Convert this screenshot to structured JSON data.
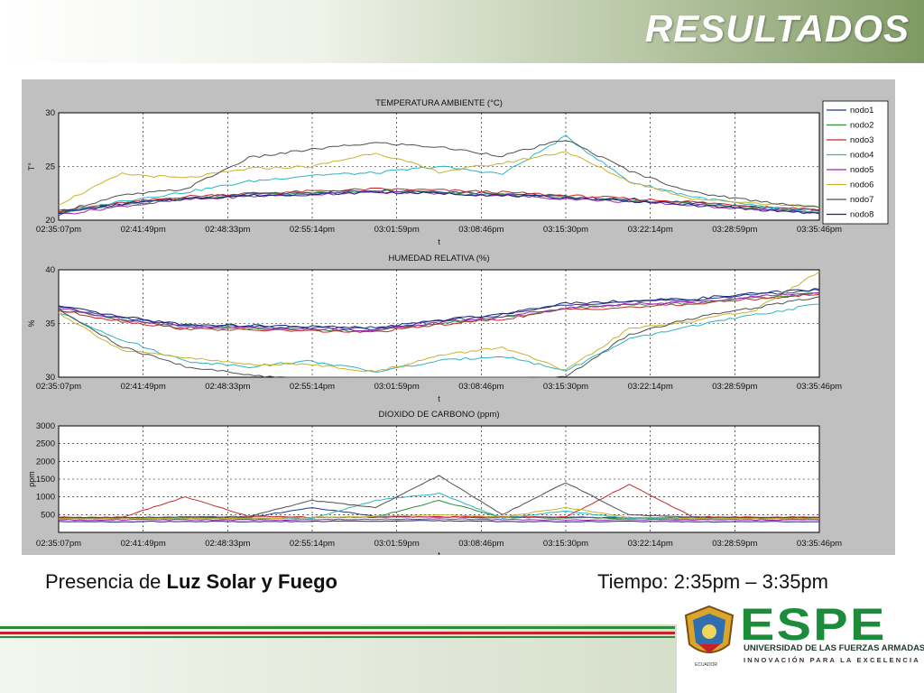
{
  "slide": {
    "title": "RESULTADOS",
    "caption_prefix": "Presencia de ",
    "caption_bold": "Luz Solar y Fuego",
    "caption_time": "Tiempo: 2:35pm – 3:35pm"
  },
  "logo": {
    "name": "ESPE",
    "university": "UNIVERSIDAD DE LAS FUERZAS ARMADAS",
    "motto": "INNOVACIÓN PARA LA EXCELENCIA",
    "crest_label": "ECUADOR"
  },
  "colors": {
    "nodo1": "#1f3a8a",
    "nodo2": "#2e8b3a",
    "nodo3": "#c62828",
    "nodo4": "#2bb5c2",
    "nodo5": "#9c27b0",
    "nodo6": "#c9b32e",
    "nodo7": "#505050",
    "nodo8": "#1a237e"
  },
  "chart_data": [
    {
      "type": "line",
      "title": "TEMPERATURA AMBIENTE (°C)",
      "xlabel": "t",
      "ylabel": "T°",
      "ylim": [
        20,
        30
      ],
      "yticks": [
        "20",
        "25",
        "30"
      ],
      "xticks": [
        "02:35:07pm",
        "02:41:49pm",
        "02:48:33pm",
        "02:55:14pm",
        "03:01:59pm",
        "03:08:46pm",
        "03:15:30pm",
        "03:22:14pm",
        "03:28:59pm",
        "03:35:46pm"
      ],
      "legend": [
        "nodo1",
        "nodo2",
        "nodo3",
        "nodo4",
        "nodo5",
        "nodo6",
        "nodo7",
        "nodo8"
      ],
      "grid": true,
      "series": [
        {
          "name": "nodo1",
          "values": [
            20.8,
            21.5,
            22.1,
            22.4,
            22.6,
            22.8,
            22.7,
            22.5,
            22.2,
            21.9,
            21.6,
            21.2,
            20.9
          ]
        },
        {
          "name": "nodo2",
          "values": [
            20.7,
            21.4,
            22.0,
            22.3,
            22.5,
            22.7,
            22.6,
            22.4,
            22.1,
            21.8,
            21.5,
            21.1,
            20.8
          ]
        },
        {
          "name": "nodo3",
          "values": [
            20.9,
            21.6,
            22.2,
            22.5,
            22.7,
            22.9,
            22.8,
            22.6,
            22.3,
            22.0,
            21.7,
            21.3,
            21.0
          ]
        },
        {
          "name": "nodo4",
          "values": [
            20.6,
            21.8,
            22.6,
            23.6,
            24.2,
            24.4,
            25.0,
            24.3,
            27.8,
            23.6,
            22.2,
            21.3,
            20.7
          ]
        },
        {
          "name": "nodo5",
          "values": [
            20.5,
            21.3,
            21.9,
            22.2,
            22.4,
            22.6,
            22.5,
            22.3,
            22.0,
            21.7,
            21.4,
            21.0,
            20.7
          ]
        },
        {
          "name": "nodo6",
          "values": [
            21.5,
            24.3,
            23.9,
            24.8,
            25.0,
            26.3,
            24.5,
            25.3,
            26.4,
            23.6,
            22.0,
            21.6,
            21.2
          ]
        },
        {
          "name": "nodo7",
          "values": [
            20.8,
            22.3,
            22.9,
            25.8,
            26.6,
            27.2,
            26.8,
            26.0,
            27.5,
            24.6,
            22.6,
            21.8,
            21.2
          ]
        },
        {
          "name": "nodo8",
          "values": [
            20.7,
            21.5,
            22.0,
            22.3,
            22.4,
            22.6,
            22.5,
            22.3,
            22.1,
            21.8,
            21.4,
            21.0,
            20.6
          ]
        }
      ]
    },
    {
      "type": "line",
      "title": "HUMEDAD RELATIVA (%)",
      "xlabel": "t",
      "ylabel": "%",
      "ylim": [
        30,
        40
      ],
      "yticks": [
        "30",
        "35",
        "40"
      ],
      "xticks": [
        "02:35:07pm",
        "02:41:49pm",
        "02:48:33pm",
        "02:55:14pm",
        "03:01:59pm",
        "03:08:46pm",
        "03:15:30pm",
        "03:22:14pm",
        "03:28:59pm",
        "03:35:46pm"
      ],
      "grid": true,
      "series": [
        {
          "name": "nodo1",
          "values": [
            36.5,
            35.5,
            34.8,
            34.7,
            34.6,
            34.5,
            35.2,
            35.8,
            36.8,
            37.0,
            37.2,
            37.7,
            38.1
          ]
        },
        {
          "name": "nodo2",
          "values": [
            36.3,
            35.3,
            34.6,
            34.5,
            34.4,
            34.3,
            35.0,
            35.5,
            36.4,
            36.7,
            36.9,
            37.4,
            37.8
          ]
        },
        {
          "name": "nodo3",
          "values": [
            36.2,
            35.2,
            34.5,
            34.4,
            34.3,
            34.2,
            34.9,
            35.4,
            36.3,
            36.5,
            36.8,
            37.3,
            37.7
          ]
        },
        {
          "name": "nodo4",
          "values": [
            36.0,
            33.5,
            31.5,
            31.0,
            31.5,
            30.5,
            31.5,
            32.0,
            30.6,
            33.5,
            34.8,
            35.8,
            36.8
          ]
        },
        {
          "name": "nodo5",
          "values": [
            36.4,
            35.4,
            34.7,
            34.6,
            34.5,
            34.4,
            35.1,
            35.6,
            36.5,
            36.8,
            37.0,
            37.5,
            37.9
          ]
        },
        {
          "name": "nodo6",
          "values": [
            36.0,
            32.5,
            31.8,
            31.2,
            31.2,
            30.5,
            32.0,
            32.8,
            30.6,
            34.5,
            35.2,
            36.3,
            39.8
          ]
        },
        {
          "name": "nodo7",
          "values": [
            36.3,
            32.8,
            31.0,
            30.2,
            29.8,
            29.5,
            29.6,
            29.8,
            30.0,
            34.0,
            35.5,
            36.5,
            37.5
          ]
        },
        {
          "name": "nodo8",
          "values": [
            36.6,
            35.6,
            34.9,
            34.8,
            34.7,
            34.6,
            35.3,
            35.9,
            36.9,
            37.1,
            37.3,
            37.8,
            38.2
          ]
        }
      ]
    },
    {
      "type": "line",
      "title": "DIOXIDO DE CARBONO (ppm)",
      "xlabel": "t",
      "ylabel": "ppm",
      "ylim": [
        0,
        3000
      ],
      "yticks": [
        "500",
        "1000",
        "1500",
        "2000",
        "2500",
        "3000"
      ],
      "xticks": [
        "02:35:07pm",
        "02:41:49pm",
        "02:48:33pm",
        "02:55:14pm",
        "03:01:59pm",
        "03:08:46pm",
        "03:15:30pm",
        "03:22:14pm",
        "03:28:59pm",
        "03:35:46pm"
      ],
      "grid": true,
      "series": [
        {
          "name": "nodo1",
          "values": [
            420,
            420,
            430,
            420,
            700,
            450,
            430,
            420,
            430,
            420,
            430,
            420,
            420
          ]
        },
        {
          "name": "nodo2",
          "values": [
            400,
            400,
            410,
            400,
            420,
            430,
            900,
            420,
            410,
            400,
            410,
            400,
            400
          ]
        },
        {
          "name": "nodo3",
          "values": [
            430,
            430,
            1000,
            450,
            430,
            430,
            440,
            450,
            430,
            1350,
            440,
            430,
            430
          ]
        },
        {
          "name": "nodo4",
          "values": [
            380,
            380,
            390,
            380,
            400,
            900,
            1100,
            400,
            600,
            390,
            380,
            380,
            380
          ]
        },
        {
          "name": "nodo5",
          "values": [
            350,
            350,
            360,
            350,
            360,
            370,
            380,
            360,
            350,
            360,
            350,
            350,
            350
          ]
        },
        {
          "name": "nodo6",
          "values": [
            390,
            390,
            400,
            390,
            420,
            450,
            500,
            430,
            700,
            420,
            400,
            390,
            390
          ]
        },
        {
          "name": "nodo7",
          "values": [
            420,
            420,
            430,
            450,
            900,
            700,
            1600,
            500,
            1400,
            500,
            430,
            420,
            420
          ]
        },
        {
          "name": "nodo8",
          "values": [
            300,
            300,
            310,
            300,
            310,
            320,
            330,
            310,
            300,
            310,
            300,
            300,
            300
          ]
        }
      ]
    }
  ]
}
